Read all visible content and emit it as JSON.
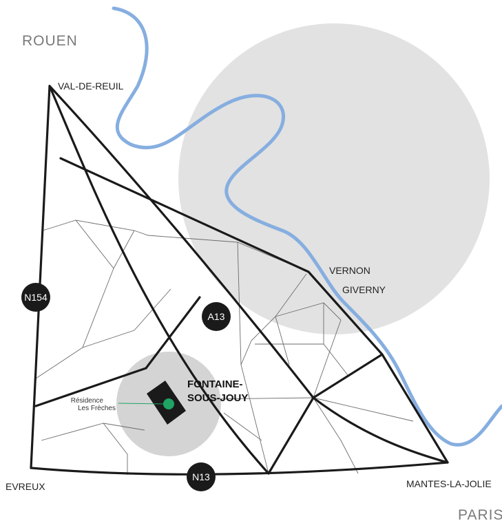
{
  "colors": {
    "river": "#86aee0",
    "zone": "#e2e2e2",
    "local_zone": "#d4d4d4",
    "road": "#1a1a1a",
    "minor_road": "#6b6b6b",
    "marker": "#1fa463",
    "muted_text": "#7a7a7a"
  },
  "map": {
    "regions": {
      "north": "ROUEN",
      "south": "PARIS"
    },
    "cities": {
      "val_de_reuil": "VAL-DE-REUIL",
      "vernon": "VERNON",
      "giverny": "GIVERNY",
      "evreux": "EVREUX",
      "mantes": "MANTES-LA-JOLIE"
    },
    "town": {
      "line1": "FONTAINE-",
      "line2": "SOUS-JOUY"
    },
    "residence": {
      "line1": "Résidence",
      "line2": "Les Frèches"
    },
    "roads": {
      "n154": "N154",
      "a13": "A13",
      "n13": "N13"
    }
  }
}
